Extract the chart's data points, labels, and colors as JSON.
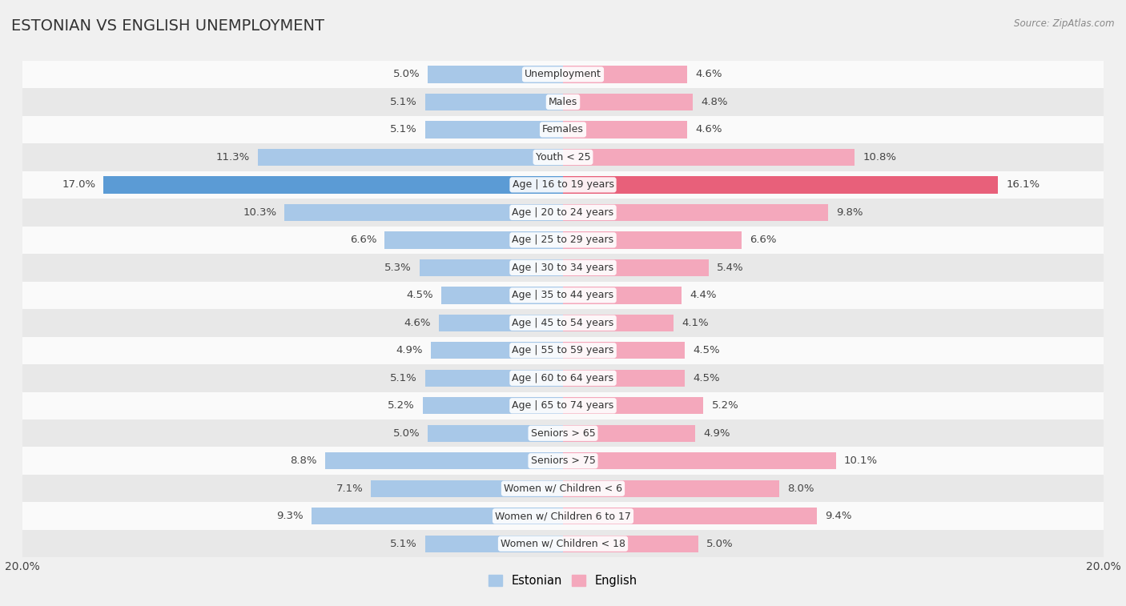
{
  "title": "ESTONIAN VS ENGLISH UNEMPLOYMENT",
  "source": "Source: ZipAtlas.com",
  "categories": [
    "Unemployment",
    "Males",
    "Females",
    "Youth < 25",
    "Age | 16 to 19 years",
    "Age | 20 to 24 years",
    "Age | 25 to 29 years",
    "Age | 30 to 34 years",
    "Age | 35 to 44 years",
    "Age | 45 to 54 years",
    "Age | 55 to 59 years",
    "Age | 60 to 64 years",
    "Age | 65 to 74 years",
    "Seniors > 65",
    "Seniors > 75",
    "Women w/ Children < 6",
    "Women w/ Children 6 to 17",
    "Women w/ Children < 18"
  ],
  "estonian": [
    5.0,
    5.1,
    5.1,
    11.3,
    17.0,
    10.3,
    6.6,
    5.3,
    4.5,
    4.6,
    4.9,
    5.1,
    5.2,
    5.0,
    8.8,
    7.1,
    9.3,
    5.1
  ],
  "english": [
    4.6,
    4.8,
    4.6,
    10.8,
    16.1,
    9.8,
    6.6,
    5.4,
    4.4,
    4.1,
    4.5,
    4.5,
    5.2,
    4.9,
    10.1,
    8.0,
    9.4,
    5.0
  ],
  "estonian_color": "#a8c8e8",
  "english_color": "#f4a8bc",
  "highlight_estonian_color": "#5b9bd5",
  "highlight_english_color": "#e8607a",
  "highlight_rows": [
    4
  ],
  "bar_height": 0.62,
  "bg_color": "#f0f0f0",
  "row_color_light": "#fafafa",
  "row_color_dark": "#e8e8e8",
  "xlim": 20.0,
  "label_fontsize": 9.5,
  "category_fontsize": 9,
  "title_fontsize": 14
}
